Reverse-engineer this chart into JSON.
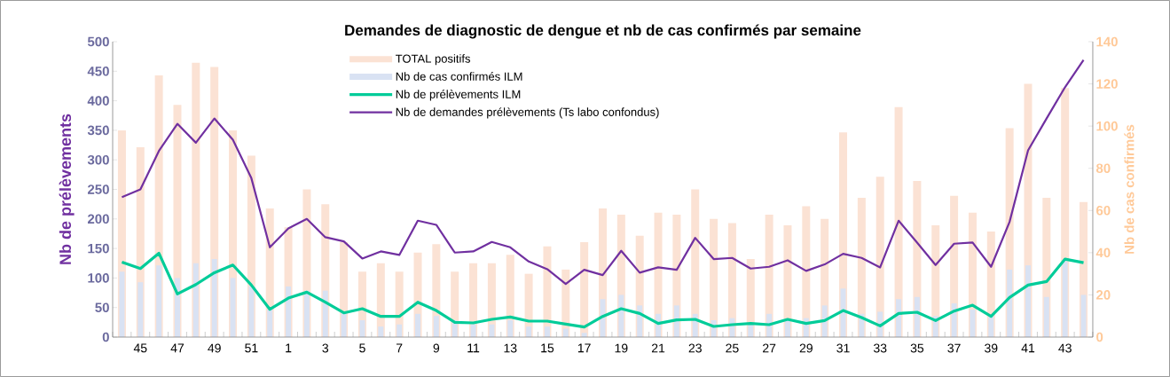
{
  "chart_data": {
    "type": "bar",
    "title": "Demandes de diagnostic de dengue et nb de cas confirmés par semaine",
    "categories": [
      null,
      "45",
      null,
      "47",
      null,
      "49",
      null,
      "51",
      null,
      "1",
      null,
      "3",
      null,
      "5",
      null,
      "7",
      null,
      "9",
      null,
      "11",
      null,
      "13",
      null,
      "15",
      null,
      "17",
      null,
      "19",
      null,
      "21",
      null,
      "23",
      null,
      "25",
      null,
      "27",
      null,
      "29",
      null,
      "31",
      null,
      "33",
      null,
      "35",
      null,
      "37",
      null,
      "39",
      null,
      "41",
      null,
      "43",
      null
    ],
    "series": [
      {
        "name": "TOTAL positifs",
        "axis": "y2",
        "color": "#fbe2d4",
        "values": [
          98,
          90,
          124,
          110,
          130,
          128,
          98,
          86,
          61,
          52,
          70,
          63,
          45,
          31,
          35,
          31,
          40,
          44,
          31,
          35,
          35,
          39,
          30,
          43,
          32,
          45,
          61,
          58,
          48,
          59,
          58,
          70,
          56,
          54,
          37,
          58,
          53,
          62,
          56,
          97,
          66,
          76,
          109,
          74,
          53,
          67,
          59,
          50,
          99,
          120,
          66,
          118,
          64
        ]
      },
      {
        "name": "Nb de cas confirmés ILM",
        "axis": "y2",
        "color": "#d9e2f3",
        "values": [
          31,
          26,
          34,
          28,
          35,
          37,
          28,
          24,
          13,
          24,
          22,
          22,
          12,
          8,
          5,
          6,
          11,
          10,
          8,
          6,
          6,
          8,
          5,
          5,
          4,
          2,
          18,
          20,
          15,
          11,
          15,
          11,
          8,
          9,
          6,
          11,
          8,
          9,
          15,
          23,
          11,
          12,
          18,
          19,
          10,
          16,
          13,
          10,
          32,
          34,
          19,
          36,
          20
        ]
      },
      {
        "name": "Nb de prélèvements ILM",
        "type": "line",
        "axis": "y",
        "color": "#00cc99",
        "values": [
          127,
          116,
          142,
          73,
          89,
          109,
          122,
          88,
          47,
          66,
          76,
          59,
          41,
          48,
          35,
          35,
          59,
          45,
          25,
          24,
          30,
          34,
          27,
          27,
          22,
          17,
          35,
          48,
          40,
          23,
          29,
          30,
          18,
          21,
          23,
          21,
          30,
          23,
          28,
          45,
          33,
          19,
          40,
          42,
          28,
          44,
          54,
          35,
          67,
          88,
          94,
          132,
          126
        ]
      },
      {
        "name": "Nb de demandes prélèvements (Ts labo confondus)",
        "type": "line",
        "axis": "y",
        "color": "#7030a0",
        "values": [
          237,
          250,
          315,
          361,
          329,
          370,
          334,
          269,
          152,
          184,
          200,
          169,
          162,
          133,
          145,
          139,
          197,
          190,
          143,
          145,
          161,
          152,
          128,
          115,
          90,
          114,
          105,
          146,
          109,
          118,
          114,
          168,
          132,
          134,
          116,
          119,
          130,
          112,
          123,
          141,
          134,
          118,
          197,
          160,
          122,
          158,
          160,
          119,
          195,
          316,
          370,
          423,
          469
        ]
      }
    ],
    "ylabel": "Nb de prélèvements",
    "y2label": "Nb de cas confirmés",
    "ylim": [
      0,
      500
    ],
    "yticks": [
      0,
      50,
      100,
      150,
      200,
      250,
      300,
      350,
      400,
      450,
      500
    ],
    "y2lim": [
      0,
      140
    ],
    "y2ticks": [
      0,
      20,
      40,
      60,
      80,
      100,
      120,
      140
    ],
    "legend": "top",
    "grid": false
  }
}
